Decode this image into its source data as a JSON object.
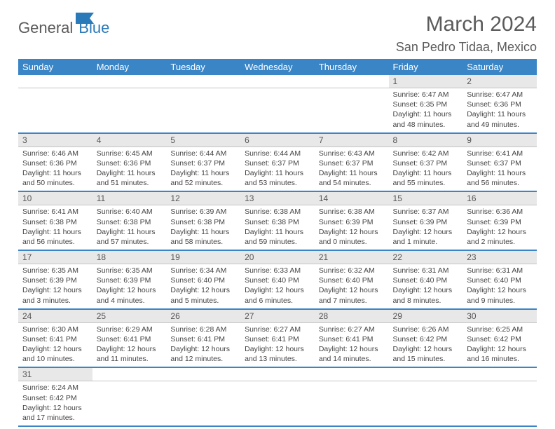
{
  "brand": {
    "word1": "General",
    "word2": "Blue",
    "color1": "#5b5b5b",
    "color2": "#2a7ab9"
  },
  "title": "March 2024",
  "location": "San Pedro Tidaa, Mexico",
  "header_bg": "#3a85c6",
  "daynum_bg": "#e8e8e8",
  "daynames": [
    "Sunday",
    "Monday",
    "Tuesday",
    "Wednesday",
    "Thursday",
    "Friday",
    "Saturday"
  ],
  "weeks": [
    [
      null,
      null,
      null,
      null,
      null,
      {
        "n": "1",
        "sr": "6:47 AM",
        "ss": "6:35 PM",
        "dl": "11 hours and 48 minutes."
      },
      {
        "n": "2",
        "sr": "6:47 AM",
        "ss": "6:36 PM",
        "dl": "11 hours and 49 minutes."
      }
    ],
    [
      {
        "n": "3",
        "sr": "6:46 AM",
        "ss": "6:36 PM",
        "dl": "11 hours and 50 minutes."
      },
      {
        "n": "4",
        "sr": "6:45 AM",
        "ss": "6:36 PM",
        "dl": "11 hours and 51 minutes."
      },
      {
        "n": "5",
        "sr": "6:44 AM",
        "ss": "6:37 PM",
        "dl": "11 hours and 52 minutes."
      },
      {
        "n": "6",
        "sr": "6:44 AM",
        "ss": "6:37 PM",
        "dl": "11 hours and 53 minutes."
      },
      {
        "n": "7",
        "sr": "6:43 AM",
        "ss": "6:37 PM",
        "dl": "11 hours and 54 minutes."
      },
      {
        "n": "8",
        "sr": "6:42 AM",
        "ss": "6:37 PM",
        "dl": "11 hours and 55 minutes."
      },
      {
        "n": "9",
        "sr": "6:41 AM",
        "ss": "6:37 PM",
        "dl": "11 hours and 56 minutes."
      }
    ],
    [
      {
        "n": "10",
        "sr": "6:41 AM",
        "ss": "6:38 PM",
        "dl": "11 hours and 56 minutes."
      },
      {
        "n": "11",
        "sr": "6:40 AM",
        "ss": "6:38 PM",
        "dl": "11 hours and 57 minutes."
      },
      {
        "n": "12",
        "sr": "6:39 AM",
        "ss": "6:38 PM",
        "dl": "11 hours and 58 minutes."
      },
      {
        "n": "13",
        "sr": "6:38 AM",
        "ss": "6:38 PM",
        "dl": "11 hours and 59 minutes."
      },
      {
        "n": "14",
        "sr": "6:38 AM",
        "ss": "6:39 PM",
        "dl": "12 hours and 0 minutes."
      },
      {
        "n": "15",
        "sr": "6:37 AM",
        "ss": "6:39 PM",
        "dl": "12 hours and 1 minute."
      },
      {
        "n": "16",
        "sr": "6:36 AM",
        "ss": "6:39 PM",
        "dl": "12 hours and 2 minutes."
      }
    ],
    [
      {
        "n": "17",
        "sr": "6:35 AM",
        "ss": "6:39 PM",
        "dl": "12 hours and 3 minutes."
      },
      {
        "n": "18",
        "sr": "6:35 AM",
        "ss": "6:39 PM",
        "dl": "12 hours and 4 minutes."
      },
      {
        "n": "19",
        "sr": "6:34 AM",
        "ss": "6:40 PM",
        "dl": "12 hours and 5 minutes."
      },
      {
        "n": "20",
        "sr": "6:33 AM",
        "ss": "6:40 PM",
        "dl": "12 hours and 6 minutes."
      },
      {
        "n": "21",
        "sr": "6:32 AM",
        "ss": "6:40 PM",
        "dl": "12 hours and 7 minutes."
      },
      {
        "n": "22",
        "sr": "6:31 AM",
        "ss": "6:40 PM",
        "dl": "12 hours and 8 minutes."
      },
      {
        "n": "23",
        "sr": "6:31 AM",
        "ss": "6:40 PM",
        "dl": "12 hours and 9 minutes."
      }
    ],
    [
      {
        "n": "24",
        "sr": "6:30 AM",
        "ss": "6:41 PM",
        "dl": "12 hours and 10 minutes."
      },
      {
        "n": "25",
        "sr": "6:29 AM",
        "ss": "6:41 PM",
        "dl": "12 hours and 11 minutes."
      },
      {
        "n": "26",
        "sr": "6:28 AM",
        "ss": "6:41 PM",
        "dl": "12 hours and 12 minutes."
      },
      {
        "n": "27",
        "sr": "6:27 AM",
        "ss": "6:41 PM",
        "dl": "12 hours and 13 minutes."
      },
      {
        "n": "28",
        "sr": "6:27 AM",
        "ss": "6:41 PM",
        "dl": "12 hours and 14 minutes."
      },
      {
        "n": "29",
        "sr": "6:26 AM",
        "ss": "6:42 PM",
        "dl": "12 hours and 15 minutes."
      },
      {
        "n": "30",
        "sr": "6:25 AM",
        "ss": "6:42 PM",
        "dl": "12 hours and 16 minutes."
      }
    ],
    [
      {
        "n": "31",
        "sr": "6:24 AM",
        "ss": "6:42 PM",
        "dl": "12 hours and 17 minutes."
      },
      null,
      null,
      null,
      null,
      null,
      null
    ]
  ]
}
